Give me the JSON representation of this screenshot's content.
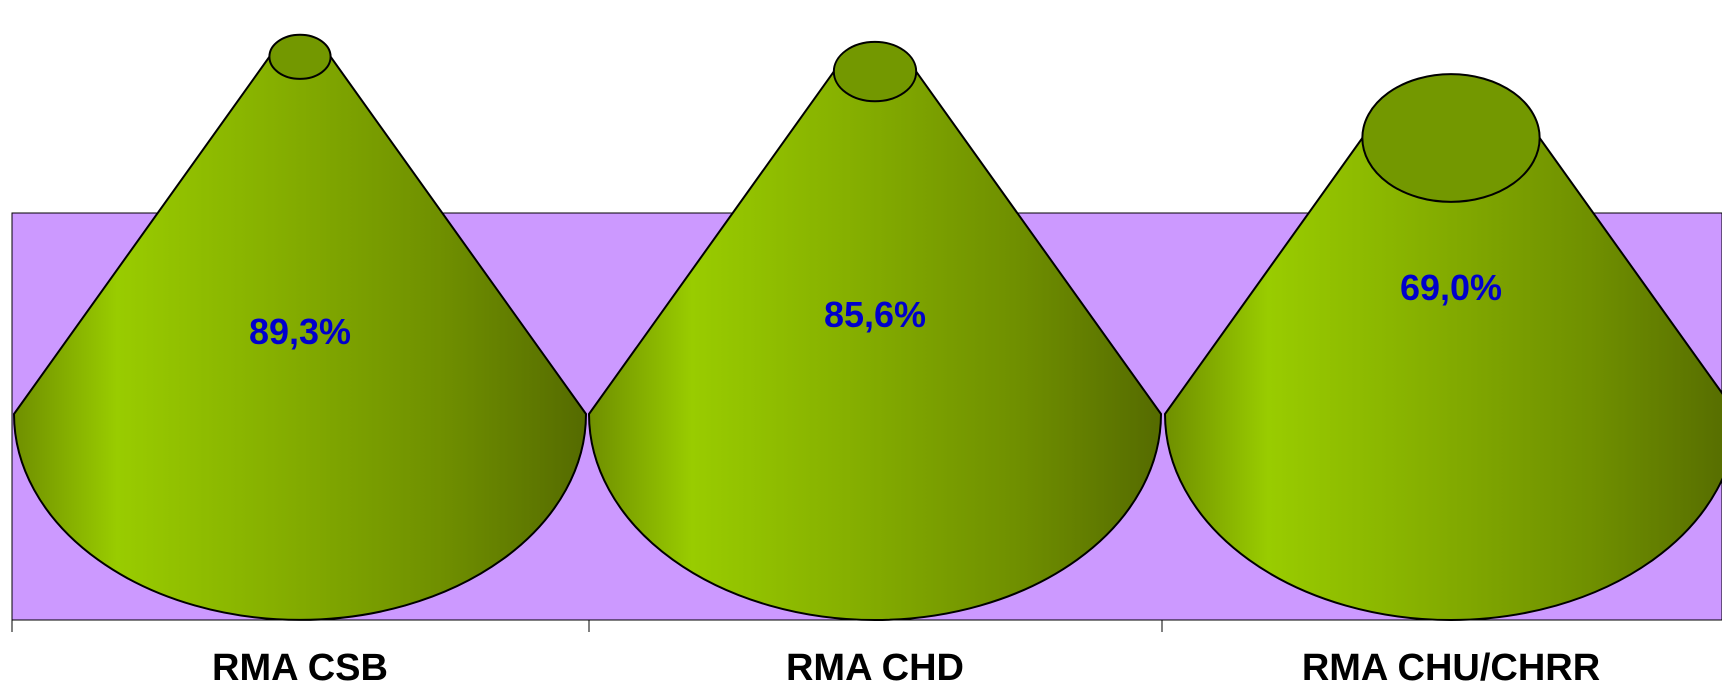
{
  "chart_data": {
    "type": "cone",
    "categories": [
      "RMA CSB",
      "RMA CHD",
      "RMA CHU/CHRR"
    ],
    "values": [
      89.3,
      85.6,
      69.0
    ],
    "value_labels": [
      "89,3%",
      "85,6%",
      "69,0%"
    ],
    "unit": "%",
    "ylim": [
      0,
      100
    ],
    "title": "",
    "xlabel": "",
    "ylabel": "",
    "grid": false,
    "legend": "none",
    "colors": {
      "background": "#ffffff",
      "plot_area": "#cc99ff",
      "cone_light": "#99cc00",
      "cone_dark": "#556b00",
      "cone_top": "#739800",
      "outline": "#000000",
      "value_label": "#0000cc"
    }
  }
}
